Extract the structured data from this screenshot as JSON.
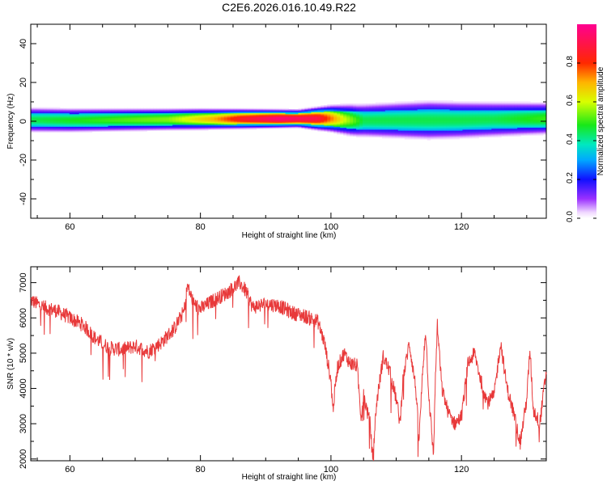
{
  "title": "C2E6.2026.016.10.49.R22",
  "chart_data": [
    {
      "type": "heatmap",
      "xlabel": "Height of straight line (km)",
      "ylabel": "Frequency (Hz)",
      "xlim": [
        54,
        133
      ],
      "ylim": [
        -50,
        50
      ],
      "x_ticks": [
        60,
        80,
        100,
        120
      ],
      "y_ticks": [
        -40,
        -20,
        0,
        20,
        40
      ],
      "band_center_hz": [
        {
          "x": 54,
          "f": 0.8
        },
        {
          "x": 60,
          "f": 0.6
        },
        {
          "x": 70,
          "f": 0.9
        },
        {
          "x": 80,
          "f": 1.2
        },
        {
          "x": 90,
          "f": 1.4
        },
        {
          "x": 100,
          "f": 1.5
        },
        {
          "x": 104,
          "f": 0.5
        },
        {
          "x": 110,
          "f": 0.6
        },
        {
          "x": 120,
          "f": 0.7
        },
        {
          "x": 133,
          "f": 1.5
        }
      ],
      "band_peak_amplitude": [
        {
          "x": 54,
          "a": 0.45
        },
        {
          "x": 65,
          "a": 0.5
        },
        {
          "x": 75,
          "a": 0.55
        },
        {
          "x": 82,
          "a": 0.7
        },
        {
          "x": 86,
          "a": 0.85
        },
        {
          "x": 92,
          "a": 0.97
        },
        {
          "x": 98,
          "a": 0.9
        },
        {
          "x": 102,
          "a": 0.6
        },
        {
          "x": 105,
          "a": 0.45
        },
        {
          "x": 115,
          "a": 0.45
        },
        {
          "x": 125,
          "a": 0.45
        },
        {
          "x": 133,
          "a": 0.5
        }
      ],
      "band_halfwidth_hz": [
        {
          "x": 54,
          "w": 3.5
        },
        {
          "x": 80,
          "w": 3.0
        },
        {
          "x": 95,
          "w": 2.5
        },
        {
          "x": 103,
          "w": 4.5
        },
        {
          "x": 115,
          "w": 5.5
        },
        {
          "x": 133,
          "w": 4.5
        }
      ]
    },
    {
      "type": "line",
      "xlabel": "Height of straight line (km)",
      "ylabel": "SNR (10 * v/v)",
      "xlim": [
        54,
        133
      ],
      "ylim": [
        1950,
        7450
      ],
      "x_ticks": [
        60,
        80,
        100,
        120
      ],
      "y_ticks": [
        2000,
        3000,
        4000,
        5000,
        6000,
        7000
      ],
      "series": [
        {
          "name": "SNR",
          "color": "#e8393a",
          "points": [
            [
              54,
              6500
            ],
            [
              56,
              6300
            ],
            [
              58,
              6200
            ],
            [
              60,
              6000
            ],
            [
              62,
              5800
            ],
            [
              64,
              5400
            ],
            [
              66,
              5150
            ],
            [
              68,
              5100
            ],
            [
              70,
              5200
            ],
            [
              72,
              5050
            ],
            [
              74,
              5300
            ],
            [
              76,
              5700
            ],
            [
              77.5,
              6200
            ],
            [
              78,
              6900
            ],
            [
              79,
              6400
            ],
            [
              80,
              6250
            ],
            [
              82,
              6500
            ],
            [
              84,
              6700
            ],
            [
              86,
              7000
            ],
            [
              87,
              6750
            ],
            [
              88,
              6300
            ],
            [
              90,
              6400
            ],
            [
              92,
              6350
            ],
            [
              94,
              6150
            ],
            [
              96,
              6050
            ],
            [
              98,
              5900
            ],
            [
              99,
              5300
            ],
            [
              100,
              4200
            ],
            [
              100.3,
              3400
            ],
            [
              101,
              4600
            ],
            [
              102,
              5000
            ],
            [
              103,
              4700
            ],
            [
              104,
              4650
            ],
            [
              104.6,
              3200
            ],
            [
              105,
              3800
            ],
            [
              106,
              3000
            ],
            [
              106.4,
              2000
            ],
            [
              107,
              3600
            ],
            [
              108,
              4900
            ],
            [
              109,
              4500
            ],
            [
              110,
              3700
            ],
            [
              110.6,
              3000
            ],
            [
              111,
              4200
            ],
            [
              112,
              5300
            ],
            [
              113,
              4000
            ],
            [
              113.5,
              2500
            ],
            [
              114,
              4300
            ],
            [
              114.5,
              5700
            ],
            [
              115,
              3800
            ],
            [
              115.7,
              2100
            ],
            [
              116,
              4200
            ],
            [
              116.3,
              5800
            ],
            [
              117,
              4000
            ],
            [
              118,
              3300
            ],
            [
              119,
              3000
            ],
            [
              120,
              3200
            ],
            [
              121,
              4700
            ],
            [
              122,
              5000
            ],
            [
              123,
              4200
            ],
            [
              124,
              3600
            ],
            [
              125,
              3800
            ],
            [
              126,
              5300
            ],
            [
              127,
              4000
            ],
            [
              128,
              3300
            ],
            [
              129,
              2450
            ],
            [
              130,
              3700
            ],
            [
              130.5,
              5100
            ],
            [
              131,
              3400
            ],
            [
              132,
              3000
            ],
            [
              133,
              4500
            ]
          ]
        }
      ]
    }
  ],
  "colorbar": {
    "label": "Normalized spectral amplitude",
    "range": [
      0,
      1
    ],
    "ticks": [
      "0.0",
      "0.2",
      "0.4",
      "0.6",
      "0.8"
    ]
  }
}
